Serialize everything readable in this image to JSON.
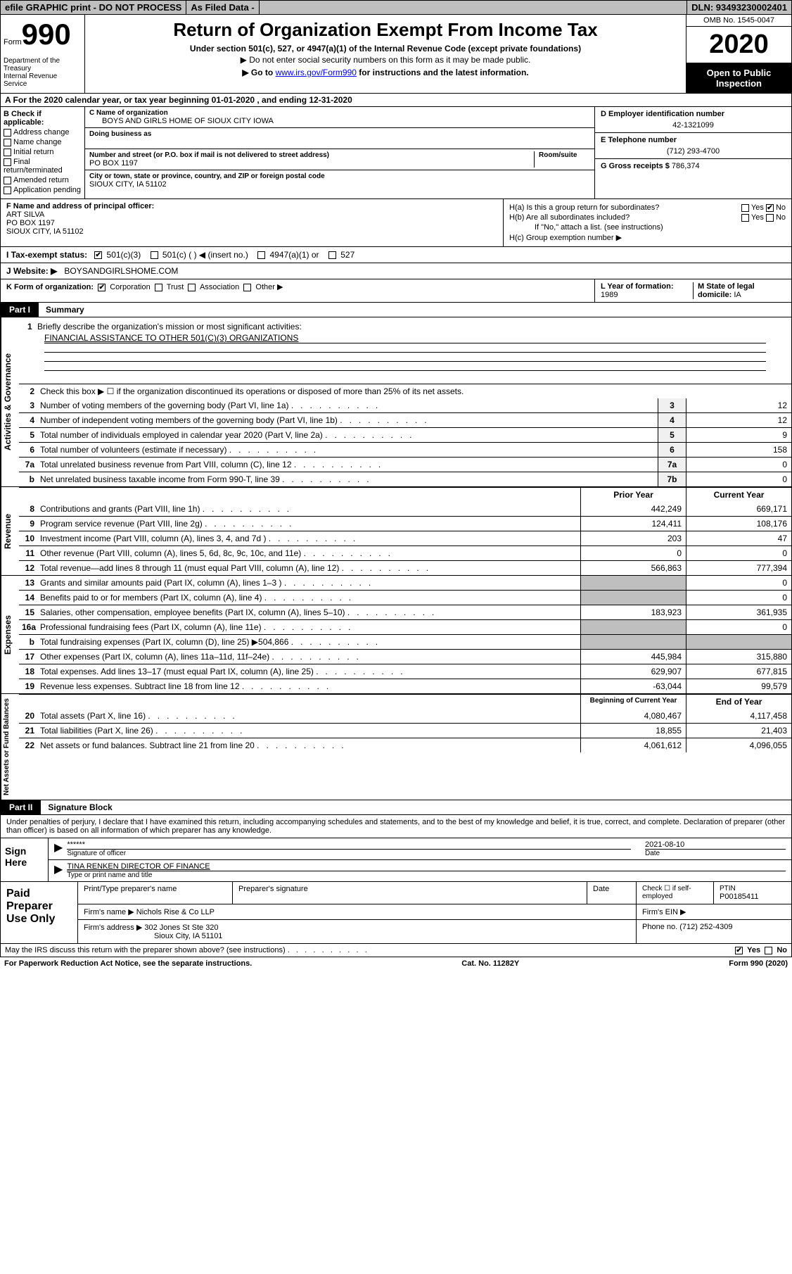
{
  "topbar": {
    "efile": "efile GRAPHIC print - DO NOT PROCESS",
    "asfiled": "As Filed Data -",
    "dln": "DLN: 93493230002401"
  },
  "header": {
    "form_label": "Form",
    "form_num": "990",
    "dept": "Department of the Treasury\nInternal Revenue Service",
    "title": "Return of Organization Exempt From Income Tax",
    "sub1": "Under section 501(c), 527, or 4947(a)(1) of the Internal Revenue Code (except private foundations)",
    "sub2": "▶ Do not enter social security numbers on this form as it may be made public.",
    "sub3_pre": "▶ Go to ",
    "sub3_link": "www.irs.gov/Form990",
    "sub3_post": " for instructions and the latest information.",
    "omb": "OMB No. 1545-0047",
    "year": "2020",
    "pub": "Open to Public Inspection"
  },
  "lineA": "A   For the 2020 calendar year, or tax year beginning 01-01-2020   , and ending 12-31-2020",
  "B": {
    "lbl": "B Check if applicable:",
    "items": [
      "Address change",
      "Name change",
      "Initial return",
      "Final return/terminated",
      "Amended return",
      "Application pending"
    ]
  },
  "C": {
    "name_lab": "C Name of organization",
    "name": "BOYS AND GIRLS HOME OF SIOUX CITY IOWA",
    "dba_lab": "Doing business as",
    "addr_lab": "Number and street (or P.O. box if mail is not delivered to street address)",
    "room_lab": "Room/suite",
    "addr": "PO BOX 1197",
    "city_lab": "City or town, state or province, country, and ZIP or foreign postal code",
    "city": "SIOUX CITY, IA  51102"
  },
  "D": {
    "lbl": "D Employer identification number",
    "val": "42-1321099"
  },
  "E": {
    "lbl": "E Telephone number",
    "val": "(712) 293-4700"
  },
  "G": {
    "lbl": "G Gross receipts $",
    "val": "786,374"
  },
  "F": {
    "lbl": "F  Name and address of principal officer:",
    "name": "ART SILVA",
    "addr1": "PO BOX 1197",
    "addr2": "SIOUX CITY, IA  51102"
  },
  "H": {
    "a": "H(a)  Is this a group return for subordinates?",
    "b": "H(b)  Are all subordinates included?",
    "bnote": "If \"No,\" attach a list. (see instructions)",
    "c": "H(c)  Group exemption number ▶"
  },
  "I": {
    "lbl": "I   Tax-exempt status:",
    "o1": "501(c)(3)",
    "o2": "501(c) (   ) ◀ (insert no.)",
    "o3": "4947(a)(1) or",
    "o4": "527"
  },
  "J": {
    "lbl": "J   Website: ▶",
    "val": "BOYSANDGIRLSHOME.COM"
  },
  "K": {
    "lbl": "K Form of organization:",
    "o1": "Corporation",
    "o2": "Trust",
    "o3": "Association",
    "o4": "Other ▶"
  },
  "L": {
    "lbl": "L Year of formation:",
    "val": "1989"
  },
  "M": {
    "lbl": "M State of legal domicile:",
    "val": "IA"
  },
  "part1": {
    "tag": "Part I",
    "title": "Summary"
  },
  "activities": {
    "label": "Activities & Governance",
    "l1": "Briefly describe the organization's mission or most significant activities:",
    "l1v": "FINANCIAL ASSISTANCE TO OTHER 501(C)(3) ORGANIZATIONS",
    "l2": "Check this box ▶ ☐ if the organization discontinued its operations or disposed of more than 25% of its net assets.",
    "rows": [
      {
        "n": "3",
        "t": "Number of voting members of the governing body (Part VI, line 1a)",
        "nb": "3",
        "v": "12"
      },
      {
        "n": "4",
        "t": "Number of independent voting members of the governing body (Part VI, line 1b)",
        "nb": "4",
        "v": "12"
      },
      {
        "n": "5",
        "t": "Total number of individuals employed in calendar year 2020 (Part V, line 2a)",
        "nb": "5",
        "v": "9"
      },
      {
        "n": "6",
        "t": "Total number of volunteers (estimate if necessary)",
        "nb": "6",
        "v": "158"
      },
      {
        "n": "7a",
        "t": "Total unrelated business revenue from Part VIII, column (C), line 12",
        "nb": "7a",
        "v": "0"
      },
      {
        "n": "b",
        "t": "Net unrelated business taxable income from Form 990-T, line 39",
        "nb": "7b",
        "v": "0"
      }
    ]
  },
  "revenue": {
    "label": "Revenue",
    "hdr_prior": "Prior Year",
    "hdr_curr": "Current Year",
    "rows": [
      {
        "n": "8",
        "t": "Contributions and grants (Part VIII, line 1h)",
        "p": "442,249",
        "c": "669,171"
      },
      {
        "n": "9",
        "t": "Program service revenue (Part VIII, line 2g)",
        "p": "124,411",
        "c": "108,176"
      },
      {
        "n": "10",
        "t": "Investment income (Part VIII, column (A), lines 3, 4, and 7d )",
        "p": "203",
        "c": "47"
      },
      {
        "n": "11",
        "t": "Other revenue (Part VIII, column (A), lines 5, 6d, 8c, 9c, 10c, and 11e)",
        "p": "0",
        "c": "0"
      },
      {
        "n": "12",
        "t": "Total revenue—add lines 8 through 11 (must equal Part VIII, column (A), line 12)",
        "p": "566,863",
        "c": "777,394"
      }
    ]
  },
  "expenses": {
    "label": "Expenses",
    "rows": [
      {
        "n": "13",
        "t": "Grants and similar amounts paid (Part IX, column (A), lines 1–3 )",
        "p": "",
        "c": "0"
      },
      {
        "n": "14",
        "t": "Benefits paid to or for members (Part IX, column (A), line 4)",
        "p": "",
        "c": "0"
      },
      {
        "n": "15",
        "t": "Salaries, other compensation, employee benefits (Part IX, column (A), lines 5–10)",
        "p": "183,923",
        "c": "361,935"
      },
      {
        "n": "16a",
        "t": "Professional fundraising fees (Part IX, column (A), line 11e)",
        "p": "",
        "c": "0"
      },
      {
        "n": "b",
        "t": "Total fundraising expenses (Part IX, column (D), line 25) ▶504,866",
        "p": "",
        "c": ""
      },
      {
        "n": "17",
        "t": "Other expenses (Part IX, column (A), lines 11a–11d, 11f–24e)",
        "p": "445,984",
        "c": "315,880"
      },
      {
        "n": "18",
        "t": "Total expenses. Add lines 13–17 (must equal Part IX, column (A), line 25)",
        "p": "629,907",
        "c": "677,815"
      },
      {
        "n": "19",
        "t": "Revenue less expenses. Subtract line 18 from line 12",
        "p": "-63,044",
        "c": "99,579"
      }
    ]
  },
  "netassets": {
    "label": "Net Assets or Fund Balances",
    "hdr_beg": "Beginning of Current Year",
    "hdr_end": "End of Year",
    "rows": [
      {
        "n": "20",
        "t": "Total assets (Part X, line 16)",
        "p": "4,080,467",
        "c": "4,117,458"
      },
      {
        "n": "21",
        "t": "Total liabilities (Part X, line 26)",
        "p": "18,855",
        "c": "21,403"
      },
      {
        "n": "22",
        "t": "Net assets or fund balances. Subtract line 21 from line 20",
        "p": "4,061,612",
        "c": "4,096,055"
      }
    ]
  },
  "part2": {
    "tag": "Part II",
    "title": "Signature Block"
  },
  "sigtext": "Under penalties of perjury, I declare that I have examined this return, including accompanying schedules and statements, and to the best of my knowledge and belief, it is true, correct, and complete. Declaration of preparer (other than officer) is based on all information of which preparer has any knowledge.",
  "sign": {
    "lbl": "Sign Here",
    "stars": "******",
    "siglab": "Signature of officer",
    "date": "2021-08-10",
    "datelab": "Date",
    "name": "TINA RENKEN  DIRECTOR OF FINANCE",
    "namelab": "Type or print name and title"
  },
  "paid": {
    "lbl": "Paid Preparer Use Only",
    "h1": "Print/Type preparer's name",
    "h2": "Preparer's signature",
    "h3": "Date",
    "h4": "Check ☐ if self-employed",
    "h5l": "PTIN",
    "h5": "P00185411",
    "firm_lab": "Firm's name   ▶",
    "firm": "Nichols Rise & Co LLP",
    "ein_lab": "Firm's EIN ▶",
    "addr_lab": "Firm's address ▶",
    "addr": "302 Jones St Ste 320",
    "city": "Sioux City, IA  51101",
    "phone_lab": "Phone no.",
    "phone": "(712) 252-4309"
  },
  "footer": {
    "q": "May the IRS discuss this return with the preparer shown above? (see instructions)",
    "yes": "Yes",
    "no": "No",
    "pra": "For Paperwork Reduction Act Notice, see the separate instructions.",
    "cat": "Cat. No. 11282Y",
    "form": "Form 990 (2020)"
  }
}
